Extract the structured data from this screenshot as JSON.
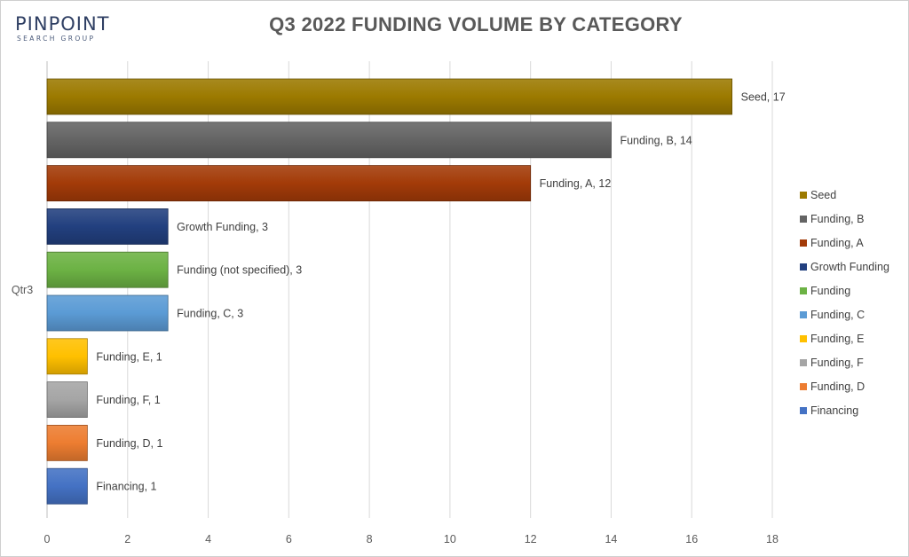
{
  "logo": {
    "main": "PINPOINT",
    "sub": "SEARCH GROUP"
  },
  "chart_data": {
    "type": "bar",
    "orientation": "horizontal",
    "title": "Q3 2022 FUNDING VOLUME BY CATEGORY",
    "category_axis_label": "Qtr3",
    "xlim": [
      0,
      18
    ],
    "x_ticks": [
      "0",
      "2",
      "4",
      "6",
      "8",
      "10",
      "12",
      "14",
      "16",
      "18"
    ],
    "grid": true,
    "legend_position": "right",
    "series": [
      {
        "name": "Seed",
        "value": 17,
        "label": "Seed, 17",
        "color": "#9c7a00"
      },
      {
        "name": "Funding, B",
        "value": 14,
        "label": "Funding, B, 14",
        "color": "#646464"
      },
      {
        "name": "Funding, A",
        "value": 12,
        "label": "Funding, A, 12",
        "color": "#a33b08"
      },
      {
        "name": "Growth Funding",
        "value": 3,
        "label": "Growth Funding, 3",
        "color": "#22407f"
      },
      {
        "name": "Funding",
        "value": 3,
        "label": "Funding (not specified), 3",
        "color": "#6cb244"
      },
      {
        "name": "Funding, C",
        "value": 3,
        "label": "Funding, C, 3",
        "color": "#5b9bd5"
      },
      {
        "name": "Funding, E",
        "value": 1,
        "label": "Funding, E, 1",
        "color": "#ffc000"
      },
      {
        "name": "Funding, F",
        "value": 1,
        "label": "Funding, F, 1",
        "color": "#a5a5a5"
      },
      {
        "name": "Funding, D",
        "value": 1,
        "label": "Funding, D, 1",
        "color": "#ed7d31"
      },
      {
        "name": "Financing",
        "value": 1,
        "label": "Financing, 1",
        "color": "#4472c4"
      }
    ]
  }
}
